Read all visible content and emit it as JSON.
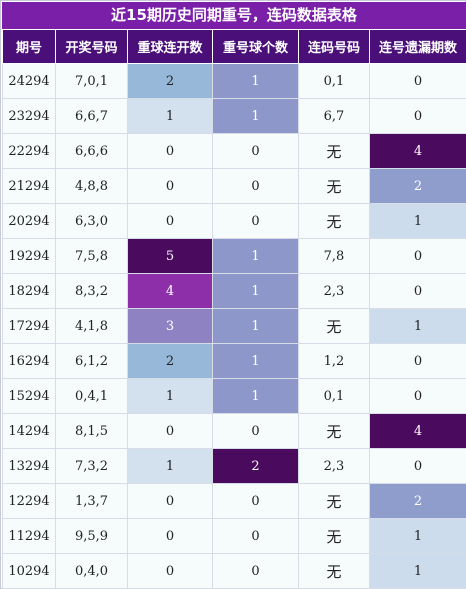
{
  "title": "近15期历史同期重号，连码数据表格",
  "headers": [
    "期号",
    "开奖号码",
    "重球连开数",
    "重号球个数",
    "连码号码",
    "连号遗漏期数"
  ],
  "colors": {
    "title_bg": "#7a1fa8",
    "header_bg": "#4a0f78",
    "cell_bg": "#f6fbfb"
  },
  "rows": [
    {
      "issue": "24294",
      "numbers": "7,0,1",
      "repeat_streak": "2",
      "repeat_count": "1",
      "consecutive": "0,1",
      "miss": "0"
    },
    {
      "issue": "23294",
      "numbers": "6,6,7",
      "repeat_streak": "1",
      "repeat_count": "1",
      "consecutive": "6,7",
      "miss": "0"
    },
    {
      "issue": "22294",
      "numbers": "6,6,6",
      "repeat_streak": "0",
      "repeat_count": "0",
      "consecutive": "无",
      "miss": "4"
    },
    {
      "issue": "21294",
      "numbers": "4,8,8",
      "repeat_streak": "0",
      "repeat_count": "0",
      "consecutive": "无",
      "miss": "2"
    },
    {
      "issue": "20294",
      "numbers": "6,3,0",
      "repeat_streak": "0",
      "repeat_count": "0",
      "consecutive": "无",
      "miss": "1"
    },
    {
      "issue": "19294",
      "numbers": "7,5,8",
      "repeat_streak": "5",
      "repeat_count": "1",
      "consecutive": "7,8",
      "miss": "0"
    },
    {
      "issue": "18294",
      "numbers": "8,3,2",
      "repeat_streak": "4",
      "repeat_count": "1",
      "consecutive": "2,3",
      "miss": "0"
    },
    {
      "issue": "17294",
      "numbers": "4,1,8",
      "repeat_streak": "3",
      "repeat_count": "1",
      "consecutive": "无",
      "miss": "1"
    },
    {
      "issue": "16294",
      "numbers": "6,1,2",
      "repeat_streak": "2",
      "repeat_count": "1",
      "consecutive": "1,2",
      "miss": "0"
    },
    {
      "issue": "15294",
      "numbers": "0,4,1",
      "repeat_streak": "1",
      "repeat_count": "1",
      "consecutive": "0,1",
      "miss": "0"
    },
    {
      "issue": "14294",
      "numbers": "8,1,5",
      "repeat_streak": "0",
      "repeat_count": "0",
      "consecutive": "无",
      "miss": "4"
    },
    {
      "issue": "13294",
      "numbers": "7,3,2",
      "repeat_streak": "1",
      "repeat_count": "2",
      "consecutive": "2,3",
      "miss": "0"
    },
    {
      "issue": "12294",
      "numbers": "1,3,7",
      "repeat_streak": "0",
      "repeat_count": "0",
      "consecutive": "无",
      "miss": "2"
    },
    {
      "issue": "11294",
      "numbers": "9,5,9",
      "repeat_streak": "0",
      "repeat_count": "0",
      "consecutive": "无",
      "miss": "1"
    },
    {
      "issue": "10294",
      "numbers": "0,4,0",
      "repeat_streak": "0",
      "repeat_count": "0",
      "consecutive": "无",
      "miss": "1"
    }
  ]
}
